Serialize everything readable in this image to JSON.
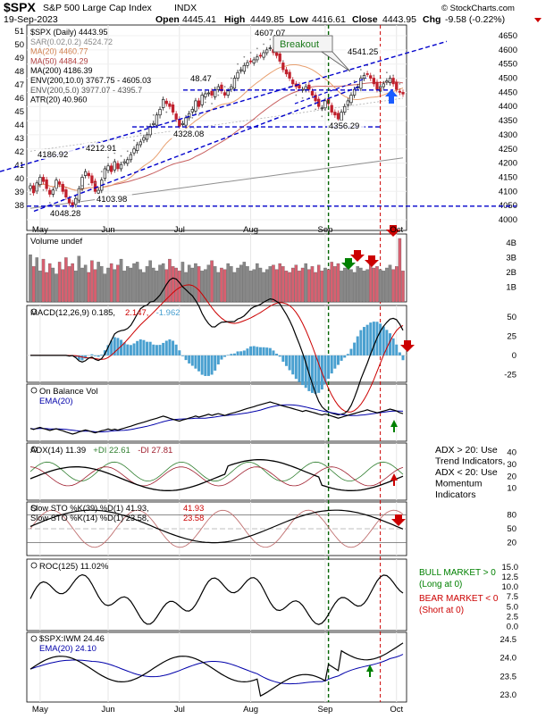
{
  "header": {
    "symbol": "$SPX",
    "name": "S&P 500 Large Cap Index",
    "exchange": "INDX",
    "date": "19-Sep-2023",
    "open_label": "Open",
    "open": "4445.41",
    "high_label": "High",
    "high": "4449.85",
    "low_label": "Low",
    "low": "4416.61",
    "close_label": "Close",
    "close": "4443.95",
    "chg_label": "Chg",
    "chg": "-9.58 (-0.22%)",
    "brand": "© StockCharts.com"
  },
  "colors": {
    "up": "#1a1a1a",
    "down": "#c0202c",
    "blue_dash": "#0000cc",
    "green_dash": "#006400",
    "red_dash": "#cc0000",
    "ma20": "#e8a070",
    "ma50": "#c86060",
    "ma200": "#909090",
    "env": "#b0b0b0",
    "vol_up": "#888888",
    "vol_down": "#d86070",
    "macd_hist": "#4aa0d0",
    "obv": "#000000",
    "ema": "#0000aa",
    "adx": "#000000",
    "pdi": "#2f7f2f",
    "mdi": "#a02030",
    "annot_green": "#008000",
    "annot_red": "#cc0000"
  },
  "chart_data": [
    {
      "type": "candlestick",
      "panel": "price",
      "title": "$SPX (Daily) 4443.95",
      "legend": [
        {
          "text": "$SPX (Daily) 4443.95",
          "color": "#000"
        },
        {
          "text": "SAR(0.02,0.2) 4524.72",
          "color": "#888"
        },
        {
          "text": "MA(20) 4460.77",
          "color": "#d08050"
        },
        {
          "text": "MA(50) 4484.29",
          "color": "#b04040"
        },
        {
          "text": "MA(200) 4186.39",
          "color": "#000"
        },
        {
          "text": "ENV(200,10.0) 3767.75 - 4605.03",
          "color": "#000"
        },
        {
          "text": "ENV(200,5.0) 3977.07 - 4395.7",
          "color": "#555"
        },
        {
          "text": "ATR(20) 40.960",
          "color": "#000"
        }
      ],
      "ylim": [
        4000,
        4650
      ],
      "y_ticks": [
        4000,
        4050,
        4100,
        4150,
        4200,
        4250,
        4300,
        4350,
        4400,
        4450,
        4500,
        4550,
        4600,
        4650
      ],
      "atr_ticks": [
        38,
        39,
        40,
        41,
        42,
        43,
        44,
        45,
        46,
        47,
        48,
        49,
        50,
        51
      ],
      "annotations": {
        "breakout": "Breakout",
        "labels": [
          "4048.28",
          "4103.98",
          "4186.92",
          "4212.91",
          "4328.08",
          "4607.07",
          "4541.25",
          "4356.29",
          "48.47"
        ]
      },
      "closes": [
        4120,
        4095,
        4130,
        4150,
        4135,
        4110,
        4090,
        4105,
        4140,
        4125,
        4100,
        4080,
        4060,
        4048,
        4075,
        4110,
        4150,
        4170,
        4155,
        4130,
        4100,
        4104,
        4140,
        4180,
        4190,
        4170,
        4205,
        4180,
        4195,
        4205,
        4212,
        4230,
        4250,
        4265,
        4275,
        4290,
        4300,
        4330,
        4340,
        4370,
        4390,
        4425,
        4410,
        4400,
        4380,
        4355,
        4330,
        4340,
        4360,
        4375,
        4390,
        4420,
        4400,
        4440,
        4445,
        4448,
        4440,
        4460,
        4470,
        4455,
        4440,
        4455,
        4470,
        4500,
        4520,
        4530,
        4545,
        4555,
        4560,
        4565,
        4575,
        4580,
        4590,
        4600,
        4607,
        4590,
        4580,
        4560,
        4530,
        4515,
        4500,
        4480,
        4470,
        4465,
        4460,
        4470,
        4460,
        4440,
        4420,
        4400,
        4395,
        4420,
        4410,
        4380,
        4370,
        4356,
        4380,
        4400,
        4420,
        4440,
        4460,
        4470,
        4500,
        4510,
        4515,
        4500,
        4480,
        4460,
        4470,
        4480,
        4490,
        4500,
        4480,
        4460,
        4450,
        4444
      ]
    },
    {
      "type": "bar",
      "panel": "volume",
      "title": "Volume undef",
      "y_ticks": [
        "4B",
        "3B",
        "2B",
        "1B"
      ],
      "values": [
        3.2,
        2.4,
        3.0,
        2.1,
        2.9,
        2.0,
        2.6,
        2.3,
        1.9,
        2.7,
        2.2,
        3.0,
        2.4,
        2.6,
        2.1,
        3.1,
        2.3,
        2.5,
        2.0,
        2.8,
        2.2,
        2.7,
        2.4,
        1.9,
        2.3,
        2.6,
        2.2,
        2.5,
        2.9,
        2.1,
        2.4,
        2.3,
        2.6,
        2.7,
        2.2,
        2.0,
        2.4,
        2.8,
        2.3,
        2.1,
        2.5,
        2.6,
        2.2,
        2.9,
        2.4,
        2.3,
        2.1,
        2.7,
        2.0,
        2.5,
        2.3,
        2.6,
        2.4,
        2.1,
        2.2,
        2.5,
        2.8,
        2.4,
        2.0,
        2.3,
        2.2,
        2.6,
        2.4,
        2.0,
        2.3,
        2.5,
        2.7,
        2.4,
        2.1,
        2.2,
        2.6,
        2.3,
        2.0,
        2.2,
        2.4,
        2.5,
        2.2,
        2.6,
        2.4,
        2.1,
        2.0,
        2.3,
        2.5,
        2.1,
        2.3,
        2.6,
        2.2,
        2.4,
        2.0,
        2.5,
        2.1,
        2.3,
        2.2,
        2.7,
        2.4,
        2.6,
        2.1,
        2.3,
        2.5,
        2.2,
        2.0,
        2.4,
        2.3,
        2.1,
        2.2,
        2.6,
        2.3,
        2.4,
        2.2,
        2.1,
        2.3,
        2.5,
        2.2,
        2.4,
        4.3,
        2.1
      ]
    },
    {
      "type": "line",
      "panel": "macd",
      "title": "MACD(12,26,9) 0.185, 2.147, -1.962",
      "legend": [
        {
          "text": "MACD(12,26,9) 0.185,",
          "color": "#000"
        },
        {
          "text": "2.147,",
          "color": "#c00"
        },
        {
          "text": "-1.962",
          "color": "#4aa0d0"
        }
      ],
      "y_ticks": [
        50,
        25,
        0,
        -25
      ],
      "ylim": [
        -35,
        65
      ]
    },
    {
      "type": "line",
      "panel": "obv",
      "title": "On Balance Vol",
      "legend": [
        {
          "text": "On Balance Vol",
          "color": "#000"
        },
        {
          "text": "EMA(20)",
          "color": "#0000aa"
        }
      ]
    },
    {
      "type": "line",
      "panel": "adx",
      "title": "ADX(14) 11.39 +DI 22.61 -DI 27.81",
      "legend": [
        {
          "text": "ADX(14) 11.39",
          "color": "#000"
        },
        {
          "text": "+DI 22.61",
          "color": "#2f7f2f"
        },
        {
          "text": "-DI 27.81",
          "color": "#a02030"
        }
      ],
      "y_ticks": [
        40,
        30,
        20,
        10
      ],
      "ylim": [
        0,
        48
      ],
      "note": [
        "ADX > 20: Use",
        "Trend Indicators,",
        "ADX < 20: Use",
        "Momentum",
        "Indicators"
      ]
    },
    {
      "type": "line",
      "panel": "sto",
      "title": "Slow STO",
      "legend": [
        {
          "text": "Slow STO %K(39) %D(1) 41.93,",
          "color": "#000"
        },
        {
          "text": "41.93",
          "color": "#c00"
        },
        {
          "text": "Slow STO %K(14) %D(1) 23.58,",
          "color": "#000"
        },
        {
          "text": "23.58",
          "color": "#c00"
        }
      ],
      "y_ticks": [
        80,
        50,
        20
      ],
      "ylim": [
        0,
        100
      ]
    },
    {
      "type": "line",
      "panel": "roc",
      "title": "ROC(125) 11.02%",
      "y_ticks": [
        "15.0",
        "12.5",
        "10.0",
        "7.5",
        "5.0",
        "2.5",
        "0.0"
      ],
      "ylim": [
        -1,
        17
      ],
      "note_green": [
        "BULL MARKET > 0",
        "(Long at 0)"
      ],
      "note_red": [
        "BEAR MARKET < 0",
        "(Short at 0)"
      ]
    },
    {
      "type": "line",
      "panel": "ratio",
      "title": "$SPX:IWM 24.46",
      "legend": [
        {
          "text": "$SPX:IWM 24.46",
          "color": "#000"
        },
        {
          "text": "EMA(20) 24.10",
          "color": "#0000aa"
        }
      ],
      "y_ticks": [
        "24.5",
        "24.0",
        "23.5",
        "23.0"
      ],
      "ylim": [
        22.8,
        24.7
      ]
    }
  ],
  "x_axis": {
    "months": [
      "May",
      "Jun",
      "Jul",
      "Aug",
      "Sep",
      "Oct"
    ],
    "top_months": [
      "May",
      "Jun",
      "Jul",
      "Aug",
      "Sep",
      "Oct"
    ]
  }
}
